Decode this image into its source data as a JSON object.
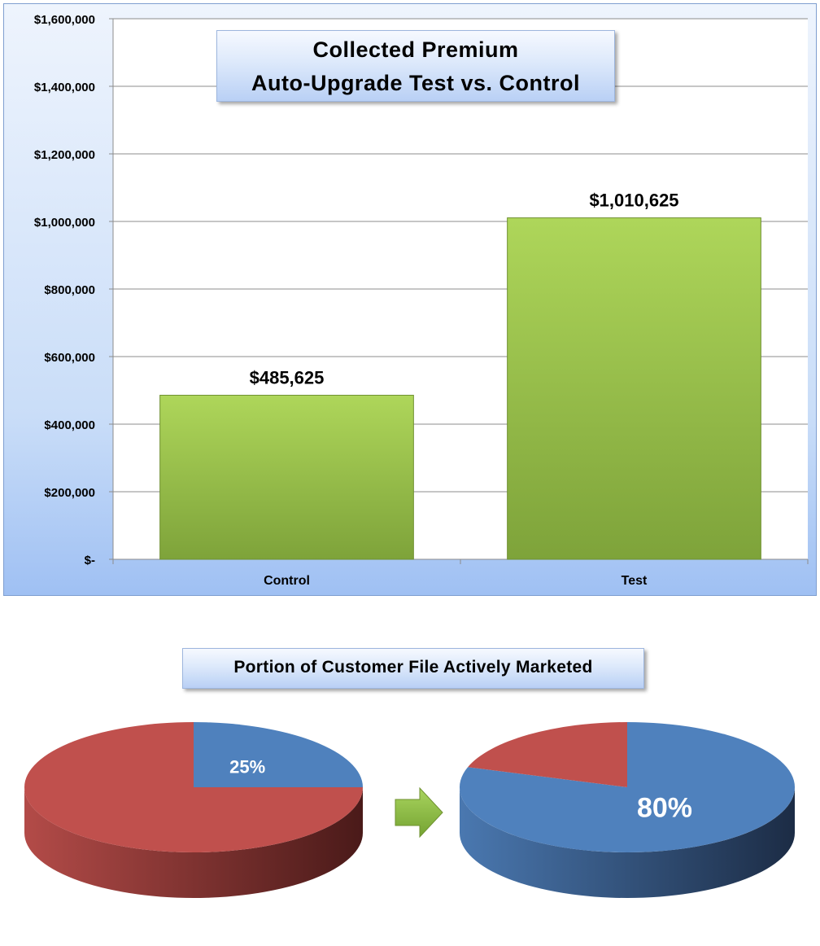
{
  "chart_data": [
    {
      "type": "bar",
      "title": "Collected Premium",
      "subtitle": "Auto-Upgrade Test vs. Control",
      "categories": [
        "Control",
        "Test"
      ],
      "values": [
        485625,
        1010625
      ],
      "data_labels": [
        "$485,625",
        "$1,010,625"
      ],
      "ylim": [
        0,
        1600000
      ],
      "yticks": [
        0,
        200000,
        400000,
        600000,
        800000,
        1000000,
        1200000,
        1400000,
        1600000
      ],
      "ytick_labels": [
        "$-",
        "$200,000",
        "$400,000",
        "$600,000",
        "$800,000",
        "$1,000,000",
        "$1,200,000",
        "$1,400,000",
        "$1,600,000"
      ],
      "grid": true,
      "bar_color": "#9bc84a"
    },
    {
      "type": "pie",
      "title": "Portion of Customer File Actively Marketed",
      "pies": [
        {
          "values": [
            25,
            75
          ],
          "colors": [
            "#4f81bd",
            "#c0504d"
          ],
          "label": "25%"
        },
        {
          "values": [
            80,
            20
          ],
          "colors": [
            "#4f81bd",
            "#c0504d"
          ],
          "label": "80%"
        }
      ],
      "arrow_color": "#8cbd3c"
    }
  ]
}
